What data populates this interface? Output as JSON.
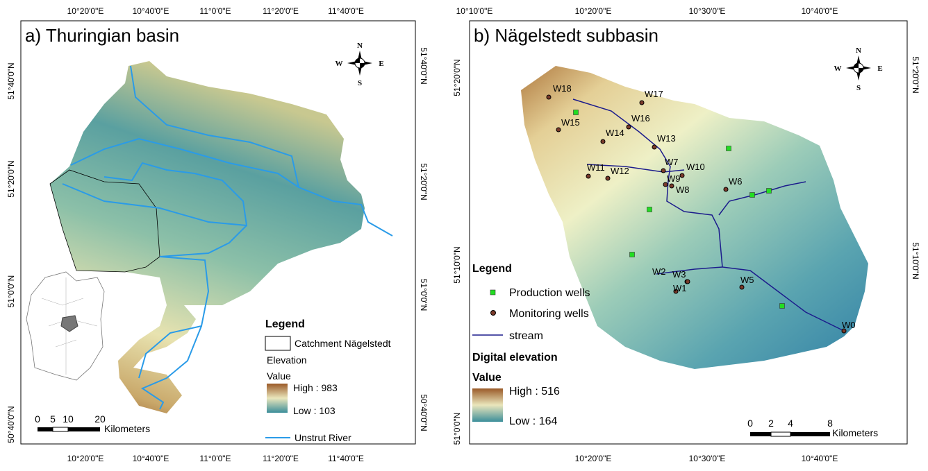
{
  "panel_a": {
    "title": "a) Thuringian basin",
    "lon_top": [
      "10°20'0\"E",
      "10°40'0\"E",
      "11°0'0\"E",
      "11°20'0\"E",
      "11°40'0\"E"
    ],
    "lon_bottom": [
      "10°20'0\"E",
      "10°40'0\"E",
      "11°0'0\"E",
      "11°20'0\"E",
      "11°40'0\"E"
    ],
    "lat_left": [
      "51°40'0\"N",
      "51°20'0\"N",
      "51°0'0\"N",
      "50°40'0\"N"
    ],
    "lat_right": [
      "51°40'0\"N",
      "51°20'0\"N",
      "51°0'0\"N",
      "50°40'0\"N"
    ],
    "compass": {
      "n": "N",
      "w": "W",
      "e": "E",
      "s": "S"
    },
    "legend": {
      "title": "Legend",
      "catchment": "Catchment Nägelstedt",
      "elevation": "Elevation",
      "value": "Value",
      "high": "High : 983",
      "low": "Low : 103",
      "river": "Unstrut River"
    },
    "scale": {
      "ticks": [
        "0",
        "5",
        "10",
        "20"
      ],
      "unit": "Kilometers"
    }
  },
  "panel_b": {
    "title": "b) Nägelstedt subbasin",
    "lon_top": [
      "10°10'0\"E",
      "10°20'0\"E",
      "10°30'0\"E",
      "10°40'0\"E"
    ],
    "lon_bottom": [
      "10°20'0\"E",
      "10°30'0\"E",
      "10°40'0\"E"
    ],
    "lat_left": [
      "51°20'0\"N",
      "51°10'0\"N",
      "51°0'0\"N"
    ],
    "lat_right": [
      "51°20'0\"N",
      "51°10'0\"N"
    ],
    "compass": {
      "n": "N",
      "w": "W",
      "e": "E",
      "s": "S"
    },
    "legend": {
      "title": "Legend",
      "production": "Production wells",
      "monitoring": "Monitoring wells",
      "stream": "stream",
      "dem": "Digital elevation",
      "value": "Value",
      "high": "High : 516",
      "low": "Low : 164"
    },
    "wells": [
      "W0",
      "W1",
      "W2",
      "W3",
      "W5",
      "W6",
      "W7",
      "W8",
      "W9",
      "W10",
      "W11",
      "W12",
      "W13",
      "W14",
      "W15",
      "W16",
      "W17",
      "W18"
    ],
    "scale": {
      "ticks": [
        "0",
        "2",
        "4",
        "8"
      ],
      "unit": "Kilometers"
    }
  }
}
